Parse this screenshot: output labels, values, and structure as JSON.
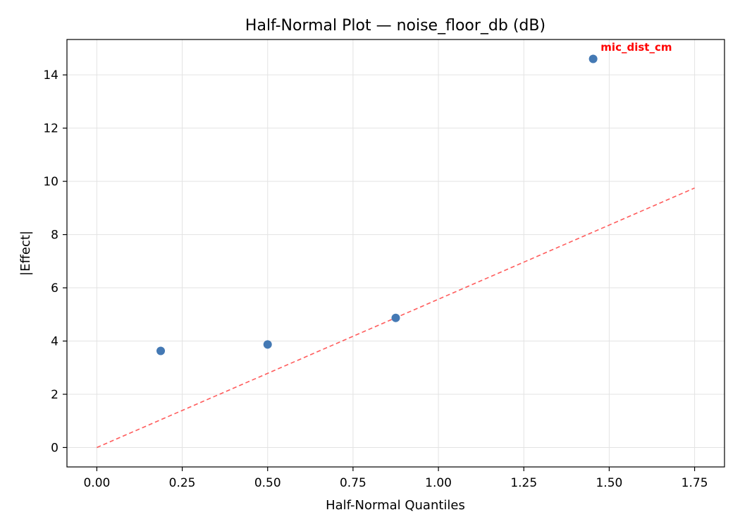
{
  "chart_data": {
    "type": "scatter",
    "title": "Half-Normal Plot — noise_floor_db (dB)",
    "xlabel": "Half-Normal Quantiles",
    "ylabel": "|Effect|",
    "xlim": [
      -0.0875,
      1.8375
    ],
    "ylim": [
      -0.73,
      15.33
    ],
    "x_ticks": [
      0.0,
      0.25,
      0.5,
      0.75,
      1.0,
      1.25,
      1.5,
      1.75
    ],
    "x_tick_labels": [
      "0.00",
      "0.25",
      "0.50",
      "0.75",
      "1.00",
      "1.25",
      "1.50",
      "1.75"
    ],
    "y_ticks": [
      0,
      2,
      4,
      6,
      8,
      10,
      12,
      14
    ],
    "y_tick_labels": [
      "0",
      "2",
      "4",
      "6",
      "8",
      "10",
      "12",
      "14"
    ],
    "grid": true,
    "point_color": "#4479b4",
    "points": [
      {
        "x": 0.187,
        "y": 3.63
      },
      {
        "x": 0.5,
        "y": 3.87
      },
      {
        "x": 0.875,
        "y": 4.87
      },
      {
        "x": 1.453,
        "y": 14.6
      }
    ],
    "reference_line": {
      "color": "#ff5c5c",
      "style": "dashed",
      "from": [
        0.0,
        0.0
      ],
      "to": [
        1.75,
        9.75
      ]
    },
    "annotations": [
      {
        "text": "mic_dist_cm",
        "x": 1.475,
        "y": 14.9,
        "color": "#ff0000"
      }
    ]
  }
}
